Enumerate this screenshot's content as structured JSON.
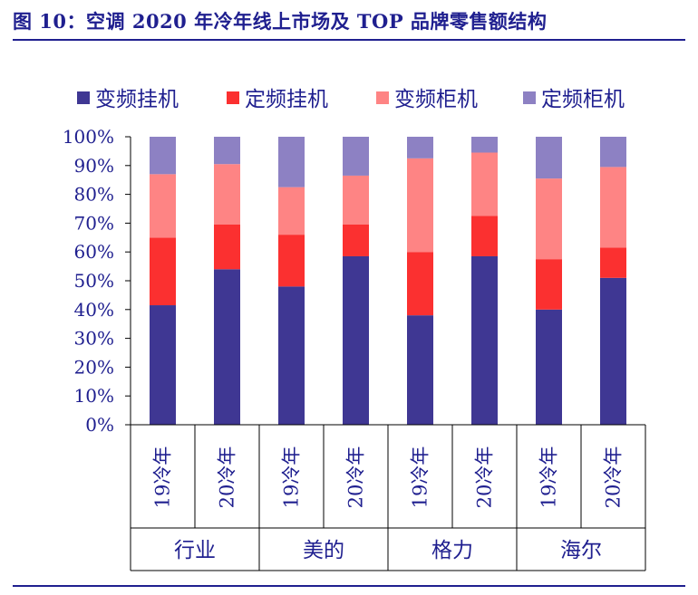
{
  "title": "图 10：空调 2020 年冷年线上市场及 TOP 品牌零售额结构",
  "chart_data": {
    "type": "bar",
    "stacked": true,
    "legend_position": "top",
    "y_tick_labels": [
      "0%",
      "10%",
      "20%",
      "30%",
      "40%",
      "50%",
      "60%",
      "70%",
      "80%",
      "90%",
      "100%"
    ],
    "ylim": [
      0,
      100
    ],
    "categories": [
      "19冷年",
      "20冷年",
      "19冷年",
      "20冷年",
      "19冷年",
      "20冷年",
      "19冷年",
      "20冷年"
    ],
    "groups": [
      {
        "label": "行业",
        "span": 2
      },
      {
        "label": "美的",
        "span": 2
      },
      {
        "label": "格力",
        "span": 2
      },
      {
        "label": "海尔",
        "span": 2
      }
    ],
    "series": [
      {
        "name": "变频挂机",
        "color": "#3f3793",
        "values": [
          41.5,
          54,
          48,
          58.5,
          38,
          58.5,
          40,
          51
        ]
      },
      {
        "name": "定频挂机",
        "color": "#fb3030",
        "values": [
          23.5,
          15.5,
          18,
          11,
          22,
          14,
          17.5,
          10.5
        ]
      },
      {
        "name": "变频柜机",
        "color": "#fe8484",
        "values": [
          22,
          21,
          16.5,
          17,
          32.5,
          22,
          28,
          28
        ]
      },
      {
        "name": "定频柜机",
        "color": "#8d81c3",
        "values": [
          13,
          9.5,
          17.5,
          13.5,
          7.5,
          5.5,
          14.5,
          10.5
        ]
      }
    ]
  }
}
